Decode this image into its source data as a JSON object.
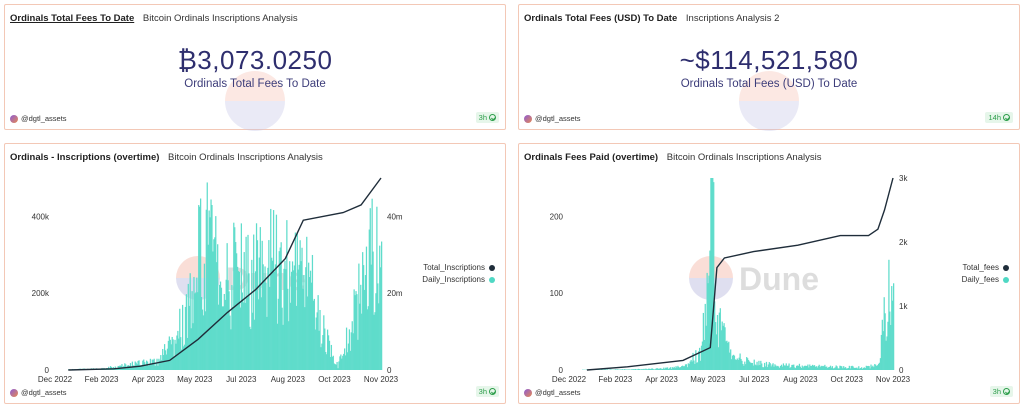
{
  "counter_total_fees": {
    "title": "Ordinals Total Fees To Date",
    "subtitle": "Bitcoin Ordinals Inscriptions Analysis",
    "value": "₿3,073.0250",
    "label": "Ordinals Total Fees To Date",
    "author": "@dgtl_assets",
    "age": "3h"
  },
  "counter_total_fees_usd": {
    "title": "Ordinals Total Fees (USD) To Date",
    "subtitle": "Inscriptions Analysis 2",
    "value": "~$114,521,580",
    "label": "Ordinals Total Fees (USD) To Date",
    "author": "@dgtl_assets",
    "age": "14h"
  },
  "inscriptions_card": {
    "title": "Ordinals - Inscriptions (overtime)",
    "subtitle": "Bitcoin Ordinals Inscriptions Analysis",
    "author": "@dgtl_assets",
    "age": "3h",
    "watermark": "Dune",
    "legend": [
      {
        "name": "Total_Inscriptions",
        "color": "#1f2d3a"
      },
      {
        "name": "Daily_Inscriptions",
        "color": "#4fd8c4"
      }
    ]
  },
  "fees_card": {
    "title": "Ordinals Fees Paid (overtime)",
    "subtitle": "Bitcoin Ordinals Inscriptions Analysis",
    "author": "@dgtl_assets",
    "age": "3h",
    "watermark": "Dune",
    "legend": [
      {
        "name": "Total_fees",
        "color": "#1f2d3a"
      },
      {
        "name": "Daily_fees",
        "color": "#4fd8c4"
      }
    ]
  },
  "chart_data": [
    {
      "type": "bar",
      "title": "Ordinals - Inscriptions (overtime)",
      "x_ticks": [
        "Dec 2022",
        "Feb 2023",
        "Apr 2023",
        "May 2023",
        "Jul 2023",
        "Aug 2023",
        "Oct 2023",
        "Nov 2023"
      ],
      "y_left_ticks": [
        "0",
        "200k",
        "400k"
      ],
      "y_right_ticks": [
        "0",
        "20m",
        "40m"
      ],
      "ylim_left": [
        0,
        500000
      ],
      "ylim_right": [
        0,
        50000000
      ],
      "series": [
        {
          "name": "Daily_Inscriptions",
          "axis": "left",
          "style": "bar",
          "points": [
            [
              "2022-12-15",
              2000
            ],
            [
              "2023-01-20",
              5000
            ],
            [
              "2023-02-10",
              15000
            ],
            [
              "2023-03-01",
              25000
            ],
            [
              "2023-03-20",
              30000
            ],
            [
              "2023-04-01",
              80000
            ],
            [
              "2023-04-15",
              150000
            ],
            [
              "2023-05-01",
              350000
            ],
            [
              "2023-05-10",
              430000
            ],
            [
              "2023-05-25",
              250000
            ],
            [
              "2023-06-10",
              330000
            ],
            [
              "2023-06-25",
              300000
            ],
            [
              "2023-07-10",
              400000
            ],
            [
              "2023-07-25",
              330000
            ],
            [
              "2023-08-10",
              300000
            ],
            [
              "2023-08-25",
              280000
            ],
            [
              "2023-09-10",
              120000
            ],
            [
              "2023-09-25",
              10000
            ],
            [
              "2023-10-10",
              150000
            ],
            [
              "2023-10-25",
              320000
            ],
            [
              "2023-11-05",
              400000
            ]
          ]
        },
        {
          "name": "Total_Inscriptions",
          "axis": "right",
          "style": "line",
          "points": [
            [
              "2022-12-15",
              0
            ],
            [
              "2023-02-01",
              300000
            ],
            [
              "2023-03-01",
              1000000
            ],
            [
              "2023-04-01",
              2500000
            ],
            [
              "2023-05-01",
              8000000
            ],
            [
              "2023-06-01",
              15000000
            ],
            [
              "2023-07-01",
              21000000
            ],
            [
              "2023-08-01",
              29000000
            ],
            [
              "2023-08-20",
              39000000
            ],
            [
              "2023-10-01",
              41000000
            ],
            [
              "2023-10-20",
              43000000
            ],
            [
              "2023-11-10",
              50000000
            ]
          ]
        }
      ]
    },
    {
      "type": "bar",
      "title": "Ordinals Fees Paid (overtime)",
      "x_ticks": [
        "Dec 2022",
        "Feb 2023",
        "Apr 2023",
        "May 2023",
        "Jul 2023",
        "Aug 2023",
        "Oct 2023",
        "Nov 2023"
      ],
      "y_left_ticks": [
        "0",
        "100",
        "200"
      ],
      "y_right_ticks": [
        "0",
        "1k",
        "2k",
        "3k"
      ],
      "ylim_left": [
        0,
        250
      ],
      "ylim_right": [
        0,
        3000
      ],
      "series": [
        {
          "name": "Daily_fees",
          "axis": "left",
          "style": "bar",
          "points": [
            [
              "2022-12-20",
              0.5
            ],
            [
              "2023-02-01",
              1
            ],
            [
              "2023-03-01",
              2
            ],
            [
              "2023-04-01",
              5
            ],
            [
              "2023-04-20",
              30
            ],
            [
              "2023-05-01",
              250
            ],
            [
              "2023-05-08",
              80
            ],
            [
              "2023-05-20",
              25
            ],
            [
              "2023-06-10",
              12
            ],
            [
              "2023-07-10",
              8
            ],
            [
              "2023-08-10",
              6
            ],
            [
              "2023-09-10",
              5
            ],
            [
              "2023-10-10",
              4
            ],
            [
              "2023-10-25",
              8
            ],
            [
              "2023-11-05",
              135
            ]
          ]
        },
        {
          "name": "Total_fees",
          "axis": "right",
          "style": "line",
          "points": [
            [
              "2022-12-20",
              0
            ],
            [
              "2023-02-01",
              50
            ],
            [
              "2023-04-01",
              150
            ],
            [
              "2023-04-30",
              350
            ],
            [
              "2023-05-07",
              1600
            ],
            [
              "2023-05-15",
              1750
            ],
            [
              "2023-06-15",
              1850
            ],
            [
              "2023-08-01",
              1950
            ],
            [
              "2023-09-15",
              2100
            ],
            [
              "2023-10-15",
              2100
            ],
            [
              "2023-10-25",
              2200
            ],
            [
              "2023-11-01",
              2500
            ],
            [
              "2023-11-10",
              3000
            ]
          ]
        }
      ]
    }
  ]
}
